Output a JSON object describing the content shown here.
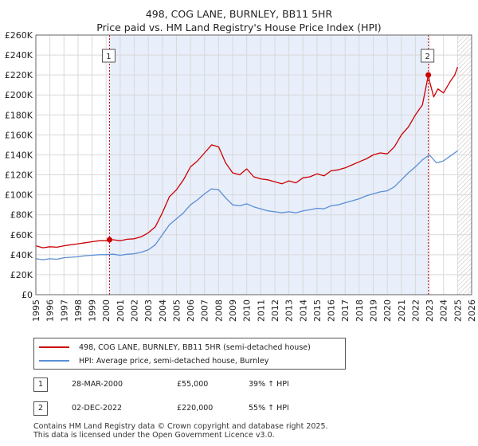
{
  "title": {
    "line1": "498, COG LANE, BURNLEY, BB11 5HR",
    "line2": "Price paid vs. HM Land Registry's House Price Index (HPI)"
  },
  "colors": {
    "property": "#cc0000",
    "hpi": "#5b8fd4",
    "shade": "#e8eefa",
    "grid": "#d9d9d9",
    "marker_line": "#cc0000"
  },
  "legend": {
    "property_label": "498, COG LANE, BURNLEY, BB11 5HR (semi-detached house)",
    "hpi_label": "HPI: Average price, semi-detached house, Burnley"
  },
  "transactions": [
    {
      "num": "1",
      "date": "28-MAR-2000",
      "price": "£55,000",
      "hpi": "39% ↑ HPI"
    },
    {
      "num": "2",
      "date": "02-DEC-2022",
      "price": "£220,000",
      "hpi": "55% ↑ HPI"
    }
  ],
  "footer": {
    "line1": "Contains HM Land Registry data © Crown copyright and database right 2025.",
    "line2": "This data is licensed under the Open Government Licence v3.0."
  },
  "chart_data": {
    "type": "line",
    "title": "498, COG LANE, BURNLEY, BB11 5HR",
    "xlabel": "",
    "ylabel": "",
    "xlim": [
      1995,
      2026
    ],
    "ylim": [
      0,
      260000
    ],
    "x_ticks": [
      "1995",
      "1996",
      "1997",
      "1998",
      "1999",
      "2000",
      "2001",
      "2002",
      "2003",
      "2004",
      "2005",
      "2006",
      "2007",
      "2008",
      "2009",
      "2010",
      "2011",
      "2012",
      "2013",
      "2014",
      "2015",
      "2016",
      "2017",
      "2018",
      "2019",
      "2020",
      "2021",
      "2022",
      "2023",
      "2024",
      "2025",
      "2026"
    ],
    "y_ticks": [
      "£0",
      "£20K",
      "£40K",
      "£60K",
      "£80K",
      "£100K",
      "£120K",
      "£140K",
      "£160K",
      "£180K",
      "£200K",
      "£220K",
      "£240K",
      "£260K"
    ],
    "y_tick_values": [
      0,
      20000,
      40000,
      60000,
      80000,
      100000,
      120000,
      140000,
      160000,
      180000,
      200000,
      220000,
      240000,
      260000
    ],
    "shaded_range": [
      2000.24,
      2022.92
    ],
    "future_hatch_from": 2025.0,
    "markers": [
      {
        "label": "1",
        "x": 2000.24,
        "y": 55000
      },
      {
        "label": "2",
        "x": 2022.92,
        "y": 220000
      }
    ],
    "series": [
      {
        "name": "498, COG LANE, BURNLEY, BB11 5HR (semi-detached house)",
        "color": "#cc0000",
        "x": [
          1995,
          1995.5,
          1996,
          1996.5,
          1997,
          1997.5,
          1998,
          1998.5,
          1999,
          1999.5,
          2000,
          2000.24,
          2000.5,
          2001,
          2001.5,
          2002,
          2002.5,
          2003,
          2003.5,
          2004,
          2004.5,
          2005,
          2005.5,
          2006,
          2006.5,
          2007,
          2007.5,
          2008,
          2008.5,
          2009,
          2009.5,
          2010,
          2010.5,
          2011,
          2011.5,
          2012,
          2012.5,
          2013,
          2013.5,
          2014,
          2014.5,
          2015,
          2015.5,
          2016,
          2016.5,
          2017,
          2017.5,
          2018,
          2018.5,
          2019,
          2019.5,
          2020,
          2020.5,
          2021,
          2021.5,
          2022,
          2022.5,
          2022.92,
          2023,
          2023.3,
          2023.6,
          2024,
          2024.5,
          2024.8,
          2025
        ],
        "y": [
          49000,
          47000,
          48000,
          47500,
          49000,
          50000,
          51000,
          52000,
          53000,
          54000,
          54000,
          55000,
          55000,
          54000,
          55500,
          56000,
          58000,
          62000,
          68000,
          82000,
          98000,
          105000,
          115000,
          128000,
          134000,
          142000,
          150000,
          148000,
          132000,
          122000,
          120000,
          126000,
          118000,
          116000,
          115000,
          113000,
          111000,
          114000,
          112000,
          117000,
          118000,
          121000,
          119000,
          124000,
          125000,
          127000,
          130000,
          133000,
          136000,
          140000,
          142000,
          141000,
          148000,
          160000,
          168000,
          180000,
          190000,
          220000,
          214000,
          198000,
          206000,
          202000,
          214000,
          220000,
          228000
        ]
      },
      {
        "name": "HPI: Average price, semi-detached house, Burnley",
        "color": "#5b8fd4",
        "x": [
          1995,
          1995.5,
          1996,
          1996.5,
          1997,
          1997.5,
          1998,
          1998.5,
          1999,
          1999.5,
          2000,
          2000.5,
          2001,
          2001.5,
          2002,
          2002.5,
          2003,
          2003.5,
          2004,
          2004.5,
          2005,
          2005.5,
          2006,
          2006.5,
          2007,
          2007.5,
          2008,
          2008.5,
          2009,
          2009.5,
          2010,
          2010.5,
          2011,
          2011.5,
          2012,
          2012.5,
          2013,
          2013.5,
          2014,
          2014.5,
          2015,
          2015.5,
          2016,
          2016.5,
          2017,
          2017.5,
          2018,
          2018.5,
          2019,
          2019.5,
          2020,
          2020.5,
          2021,
          2021.5,
          2022,
          2022.5,
          2023,
          2023.5,
          2024,
          2024.5,
          2025
        ],
        "y": [
          36000,
          35000,
          36000,
          35500,
          37000,
          37500,
          38000,
          39000,
          39500,
          40000,
          40000,
          40500,
          39500,
          40500,
          41000,
          42500,
          45000,
          50000,
          60000,
          70000,
          76000,
          82000,
          90000,
          95000,
          101000,
          106000,
          105000,
          97000,
          90000,
          89000,
          91000,
          88000,
          86000,
          84000,
          83000,
          82000,
          83000,
          82000,
          84000,
          85000,
          86500,
          86000,
          89000,
          90000,
          92000,
          94000,
          96000,
          99000,
          101000,
          103000,
          104000,
          108000,
          115000,
          122000,
          128000,
          135000,
          140000,
          132000,
          134000,
          139000,
          144000
        ]
      }
    ]
  }
}
